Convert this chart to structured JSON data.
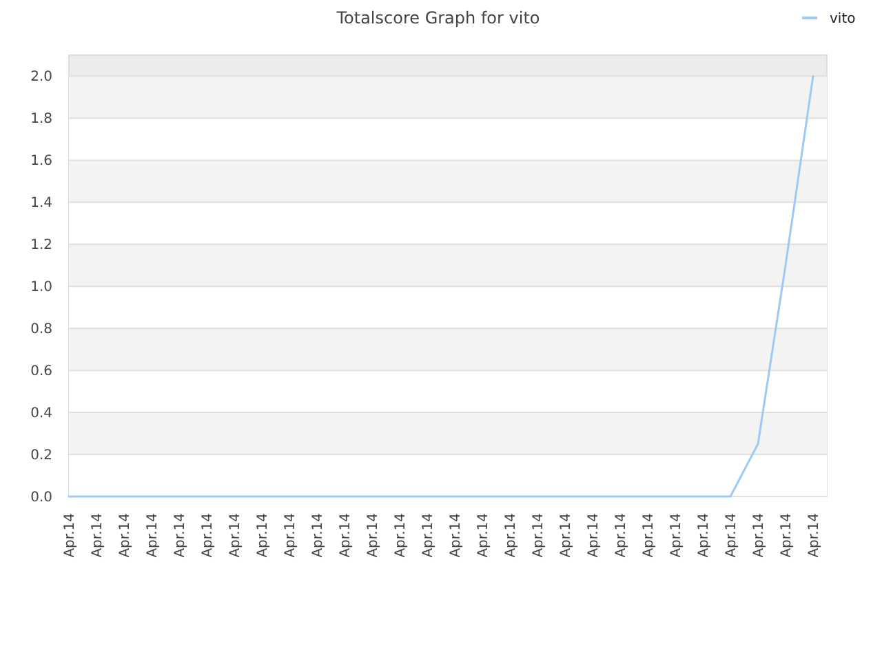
{
  "chart_data": {
    "type": "line",
    "title": "Totalscore Graph for vito",
    "categories": [
      "Apr.14",
      "Apr.14",
      "Apr.14",
      "Apr.14",
      "Apr.14",
      "Apr.14",
      "Apr.14",
      "Apr.14",
      "Apr.14",
      "Apr.14",
      "Apr.14",
      "Apr.14",
      "Apr.14",
      "Apr.14",
      "Apr.14",
      "Apr.14",
      "Apr.14",
      "Apr.14",
      "Apr.14",
      "Apr.14",
      "Apr.14",
      "Apr.14",
      "Apr.14",
      "Apr.14",
      "Apr.14",
      "Apr.14",
      "Apr.14",
      "Apr.14"
    ],
    "series": [
      {
        "name": "vito",
        "color": "#9dc9f5",
        "values": [
          0,
          0,
          0,
          0,
          0,
          0,
          0,
          0,
          0,
          0,
          0,
          0,
          0,
          0,
          0,
          0,
          0,
          0,
          0,
          0,
          0,
          0,
          0,
          0,
          0,
          0.25,
          1.1,
          2.0
        ]
      }
    ],
    "ylim": [
      0,
      2.1
    ],
    "yticks": [
      {
        "value": 0,
        "label": "0.0"
      },
      0.2,
      0.4,
      0.6,
      0.8,
      {
        "value": 1,
        "label": "1.0"
      },
      1.2,
      1.4,
      1.6,
      1.8,
      {
        "value": 2,
        "label": "2.0"
      }
    ],
    "grid": "y",
    "legend": "top right"
  }
}
